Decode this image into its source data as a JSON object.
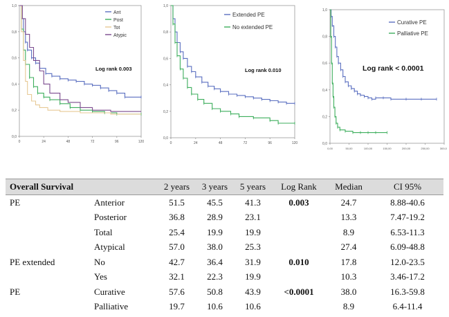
{
  "chart_data": [
    {
      "type": "line",
      "xlim": [
        0,
        120
      ],
      "ylim": [
        0,
        1.0
      ],
      "xticks": [
        "0",
        "24",
        "48",
        "72",
        "96",
        "120"
      ],
      "yticks": [
        "0,0",
        "0,2",
        "0,4",
        "0,6",
        "0,8",
        "1,0"
      ],
      "annotation": "Log rank 0.003",
      "legend_position": "top-right",
      "series": [
        {
          "name": "Ant",
          "color": "#5a6fc0",
          "marks": true,
          "points": [
            [
              0,
              1.0
            ],
            [
              2,
              0.9
            ],
            [
              4,
              0.8
            ],
            [
              6,
              0.72
            ],
            [
              8,
              0.66
            ],
            [
              12,
              0.6
            ],
            [
              16,
              0.56
            ],
            [
              20,
              0.52
            ],
            [
              26,
              0.48
            ],
            [
              32,
              0.46
            ],
            [
              40,
              0.44
            ],
            [
              48,
              0.43
            ],
            [
              56,
              0.42
            ],
            [
              64,
              0.4
            ],
            [
              72,
              0.39
            ],
            [
              80,
              0.37
            ],
            [
              88,
              0.35
            ],
            [
              96,
              0.33
            ],
            [
              104,
              0.3
            ],
            [
              120,
              0.3
            ]
          ]
        },
        {
          "name": "Post",
          "color": "#3dae5c",
          "marks": true,
          "points": [
            [
              0,
              1.0
            ],
            [
              2,
              0.82
            ],
            [
              4,
              0.66
            ],
            [
              6,
              0.55
            ],
            [
              10,
              0.45
            ],
            [
              14,
              0.38
            ],
            [
              18,
              0.33
            ],
            [
              24,
              0.3
            ],
            [
              30,
              0.28
            ],
            [
              40,
              0.25
            ],
            [
              50,
              0.22
            ],
            [
              60,
              0.2
            ],
            [
              72,
              0.19
            ],
            [
              84,
              0.18
            ],
            [
              96,
              0.17
            ],
            [
              120,
              0.17
            ]
          ]
        },
        {
          "name": "Tot",
          "color": "#e7c995",
          "marks": false,
          "points": [
            [
              0,
              1.0
            ],
            [
              2,
              0.8
            ],
            [
              4,
              0.58
            ],
            [
              6,
              0.42
            ],
            [
              8,
              0.32
            ],
            [
              12,
              0.27
            ],
            [
              16,
              0.24
            ],
            [
              20,
              0.22
            ],
            [
              28,
              0.2
            ],
            [
              40,
              0.19
            ],
            [
              60,
              0.18
            ],
            [
              90,
              0.17
            ],
            [
              120,
              0.17
            ]
          ]
        },
        {
          "name": "Atypic",
          "color": "#7b4a8e",
          "marks": false,
          "points": [
            [
              0,
              1.0
            ],
            [
              3,
              0.9
            ],
            [
              6,
              0.78
            ],
            [
              10,
              0.68
            ],
            [
              14,
              0.58
            ],
            [
              20,
              0.5
            ],
            [
              24,
              0.4
            ],
            [
              30,
              0.33
            ],
            [
              40,
              0.28
            ],
            [
              48,
              0.26
            ],
            [
              60,
              0.22
            ],
            [
              72,
              0.2
            ],
            [
              90,
              0.19
            ],
            [
              120,
              0.19
            ]
          ]
        }
      ]
    },
    {
      "type": "line",
      "xlim": [
        0,
        120
      ],
      "ylim": [
        0,
        1.0
      ],
      "xticks": [
        "0",
        "24",
        "48",
        "72",
        "96",
        "120"
      ],
      "yticks": [
        "0,0",
        "0,2",
        "0,4",
        "0,6",
        "0,8",
        "1,0"
      ],
      "annotation": "Log rank 0.010",
      "legend_position": "top-right",
      "series": [
        {
          "name": "Extended PE",
          "color": "#5a6fc0",
          "marks": true,
          "points": [
            [
              0,
              1.0
            ],
            [
              2,
              0.9
            ],
            [
              4,
              0.8
            ],
            [
              6,
              0.72
            ],
            [
              9,
              0.65
            ],
            [
              12,
              0.6
            ],
            [
              16,
              0.54
            ],
            [
              20,
              0.5
            ],
            [
              24,
              0.46
            ],
            [
              30,
              0.42
            ],
            [
              36,
              0.39
            ],
            [
              42,
              0.37
            ],
            [
              48,
              0.35
            ],
            [
              56,
              0.33
            ],
            [
              64,
              0.32
            ],
            [
              72,
              0.31
            ],
            [
              80,
              0.3
            ],
            [
              88,
              0.29
            ],
            [
              96,
              0.28
            ],
            [
              104,
              0.27
            ],
            [
              112,
              0.26
            ],
            [
              120,
              0.26
            ]
          ]
        },
        {
          "name": "No extended PE",
          "color": "#3dae5c",
          "marks": true,
          "points": [
            [
              0,
              1.0
            ],
            [
              2,
              0.86
            ],
            [
              4,
              0.72
            ],
            [
              6,
              0.62
            ],
            [
              9,
              0.52
            ],
            [
              12,
              0.45
            ],
            [
              16,
              0.38
            ],
            [
              20,
              0.33
            ],
            [
              26,
              0.29
            ],
            [
              32,
              0.26
            ],
            [
              40,
              0.22
            ],
            [
              48,
              0.2
            ],
            [
              58,
              0.18
            ],
            [
              66,
              0.16
            ],
            [
              80,
              0.15
            ],
            [
              96,
              0.13
            ],
            [
              104,
              0.11
            ],
            [
              120,
              0.11
            ]
          ]
        }
      ]
    },
    {
      "type": "line",
      "xlim": [
        0,
        300
      ],
      "ylim": [
        0,
        1.0
      ],
      "xticks": [
        "0,00",
        "50,00",
        "100,00",
        "150,00",
        "200,00",
        "250,00",
        "300,00"
      ],
      "yticks": [
        "0,0",
        "0,2",
        "0,4",
        "0,6",
        "0,8",
        "1,0"
      ],
      "annotation": "Log rank < 0.0001",
      "legend_position": "top-right",
      "series": [
        {
          "name": "Curative PE",
          "color": "#5a6fc0",
          "marks": true,
          "points": [
            [
              0,
              1.0
            ],
            [
              3,
              0.95
            ],
            [
              6,
              0.88
            ],
            [
              10,
              0.8
            ],
            [
              14,
              0.72
            ],
            [
              18,
              0.65
            ],
            [
              22,
              0.6
            ],
            [
              28,
              0.55
            ],
            [
              34,
              0.5
            ],
            [
              40,
              0.46
            ],
            [
              48,
              0.43
            ],
            [
              56,
              0.41
            ],
            [
              64,
              0.39
            ],
            [
              72,
              0.37
            ],
            [
              80,
              0.36
            ],
            [
              90,
              0.35
            ],
            [
              100,
              0.34
            ],
            [
              110,
              0.33
            ],
            [
              120,
              0.34
            ],
            [
              140,
              0.34
            ],
            [
              160,
              0.33
            ],
            [
              200,
              0.33
            ],
            [
              240,
              0.33
            ],
            [
              280,
              0.33
            ]
          ]
        },
        {
          "name": "Palliative PE",
          "color": "#3dae5c",
          "marks": true,
          "points": [
            [
              0,
              1.0
            ],
            [
              2,
              0.8
            ],
            [
              4,
              0.6
            ],
            [
              6,
              0.45
            ],
            [
              8,
              0.35
            ],
            [
              10,
              0.27
            ],
            [
              13,
              0.2
            ],
            [
              16,
              0.15
            ],
            [
              20,
              0.12
            ],
            [
              26,
              0.1
            ],
            [
              40,
              0.09
            ],
            [
              60,
              0.08
            ],
            [
              80,
              0.08
            ],
            [
              100,
              0.08
            ],
            [
              120,
              0.08
            ],
            [
              150,
              0.08
            ]
          ]
        }
      ]
    },
    {
      "type": "table",
      "title": "Overall Survival",
      "headers": [
        "2 years",
        "3 years",
        "5 years",
        "Log Rank",
        "Median",
        "CI 95%"
      ],
      "rows": [
        {
          "group": "PE",
          "sub": "Anterior",
          "y2": "51.5",
          "y3": "45.5",
          "y5": "41.3",
          "lr": "0.003",
          "median": "24.7",
          "ci": "8.88-40.6"
        },
        {
          "group": "",
          "sub": "Posterior",
          "y2": "36.8",
          "y3": "28.9",
          "y5": "23.1",
          "lr": "",
          "median": "13.3",
          "ci": "7.47-19.2"
        },
        {
          "group": "",
          "sub": "Total",
          "y2": "25.4",
          "y3": "19.9",
          "y5": "19.9",
          "lr": "",
          "median": "8.9",
          "ci": "6.53-11.3"
        },
        {
          "group": "",
          "sub": "Atypical",
          "y2": "57.0",
          "y3": "38.0",
          "y5": "25.3",
          "lr": "",
          "median": "27.4",
          "ci": "6.09-48.8"
        },
        {
          "group": "PE extended",
          "sub": "No",
          "y2": "42.7",
          "y3": "36.4",
          "y5": "31.9",
          "lr": "0.010",
          "median": "17.8",
          "ci": "12.0-23.5"
        },
        {
          "group": "",
          "sub": "Yes",
          "y2": "32.1",
          "y3": "22.3",
          "y5": "19.9",
          "lr": "",
          "median": "10.3",
          "ci": "3.46-17.2"
        },
        {
          "group": "PE",
          "sub": "Curative",
          "y2": "57.6",
          "y3": "50.8",
          "y5": "43.9",
          "lr": "<0.0001",
          "median": "38.0",
          "ci": "16.3-59.8"
        },
        {
          "group": "",
          "sub": "Palliative",
          "y2": "19.7",
          "y3": "10.6",
          "y5": "10.6",
          "lr": "",
          "median": "8.9",
          "ci": "6.4-11.4"
        }
      ]
    }
  ]
}
